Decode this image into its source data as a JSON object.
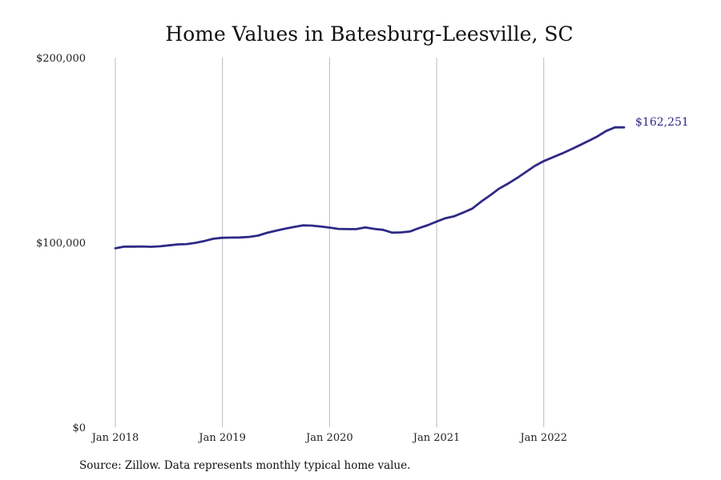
{
  "chart_data": {
    "type": "line",
    "title": "Home Values in Batesburg-Leesville, SC",
    "xlabel": "",
    "ylabel": "",
    "ylim": [
      0,
      200000
    ],
    "xlim": [
      "2018-01",
      "2022-10"
    ],
    "y_ticks": [
      {
        "value": 0,
        "label": "$0"
      },
      {
        "value": 100000,
        "label": "$100,000"
      },
      {
        "value": 200000,
        "label": "$200,000"
      }
    ],
    "x_ticks": [
      {
        "value": "2018-01",
        "label": "Jan 2018"
      },
      {
        "value": "2019-01",
        "label": "Jan 2019"
      },
      {
        "value": "2020-01",
        "label": "Jan 2020"
      },
      {
        "value": "2021-01",
        "label": "Jan 2021"
      },
      {
        "value": "2022-01",
        "label": "Jan 2022"
      }
    ],
    "grid": {
      "vertical": true,
      "horizontal": false
    },
    "series": [
      {
        "color": "#2e2a86",
        "x": [
          "2018-01",
          "2018-02",
          "2018-03",
          "2018-04",
          "2018-05",
          "2018-06",
          "2018-07",
          "2018-08",
          "2018-09",
          "2018-10",
          "2018-11",
          "2018-12",
          "2019-01",
          "2019-02",
          "2019-03",
          "2019-04",
          "2019-05",
          "2019-06",
          "2019-07",
          "2019-08",
          "2019-09",
          "2019-10",
          "2019-11",
          "2019-12",
          "2020-01",
          "2020-02",
          "2020-03",
          "2020-04",
          "2020-05",
          "2020-06",
          "2020-07",
          "2020-08",
          "2020-09",
          "2020-10",
          "2020-11",
          "2020-12",
          "2021-01",
          "2021-02",
          "2021-03",
          "2021-04",
          "2021-05",
          "2021-06",
          "2021-07",
          "2021-08",
          "2021-09",
          "2021-10",
          "2021-11",
          "2021-12",
          "2022-01",
          "2022-02",
          "2022-03",
          "2022-04",
          "2022-05",
          "2022-06",
          "2022-07",
          "2022-08",
          "2022-09",
          "2022-10"
        ],
        "values": [
          96800,
          97700,
          97700,
          97800,
          97600,
          97900,
          98400,
          98900,
          99100,
          99800,
          100800,
          102000,
          102500,
          102600,
          102700,
          103000,
          103700,
          105200,
          106300,
          107400,
          108300,
          109200,
          109100,
          108600,
          108000,
          107300,
          107200,
          107200,
          108100,
          107300,
          106800,
          105300,
          105400,
          105900,
          107700,
          109300,
          111300,
          113100,
          114200,
          116200,
          118300,
          122100,
          125500,
          129100,
          131800,
          134800,
          138100,
          141400,
          144000,
          146000,
          148000,
          150200,
          152500,
          154900,
          157300,
          160300,
          162300,
          162251
        ],
        "end_label": "$162,251"
      }
    ],
    "source": "Source: Zillow. Data represents monthly typical home value."
  }
}
